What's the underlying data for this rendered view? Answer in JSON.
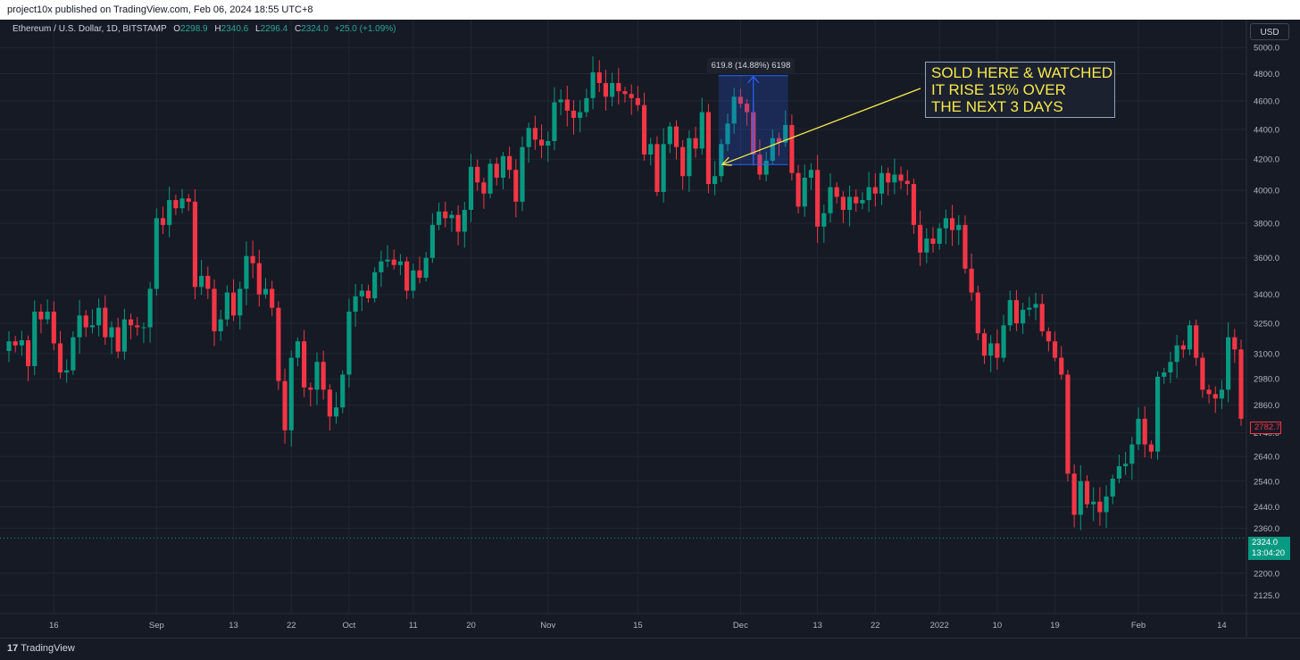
{
  "header": {
    "published": "project10x published on TradingView.com, Feb 06, 2024 18:55 UTC+8"
  },
  "legend": {
    "symbol": "Ethereum / U.S. Dollar, 1D, BITSTAMP",
    "o_label": "O",
    "o_value": "2298.9",
    "h_label": "H",
    "h_value": "2340.6",
    "l_label": "L",
    "l_value": "2296.4",
    "c_label": "C",
    "c_value": "2324.0",
    "change": "+25.0 (+1.09%)"
  },
  "currency_button": "USD",
  "annotation": {
    "lines": [
      "SOLD HERE & WATCHED",
      "IT RISE 15% OVER",
      "THE NEXT 3 DAYS"
    ]
  },
  "measure": {
    "label": "619.8 (14.88%) 6198",
    "from_price": 4165,
    "to_price": 4785
  },
  "price_tags": {
    "last_red": "2782.7",
    "current_price": "2324.0",
    "countdown": "13:04:20"
  },
  "footer": {
    "logo_text": "TradingView",
    "logo_mark": "17"
  },
  "colors": {
    "background": "#161a25",
    "up": "#089981",
    "down": "#f23645",
    "annotation_text": "#f7e94a",
    "measure_fill": "#2962ff"
  },
  "chart_data": {
    "type": "candlestick",
    "symbol": "ETH/USD",
    "interval": "1D",
    "y_axis": {
      "scale": "log",
      "ticks": [
        5000.0,
        4800.0,
        4600.0,
        4400.0,
        4200.0,
        4000.0,
        3800.0,
        3600.0,
        3400.0,
        3250.0,
        3100.0,
        2980.0,
        2860.0,
        2740.0,
        2640.0,
        2540.0,
        2440.0,
        2360.0,
        2200.0,
        2125.0
      ],
      "tick_labels": [
        "5000.0",
        "4800.0",
        "4600.0",
        "4400.0",
        "4200.0",
        "4000.0",
        "3800.0",
        "3600.0",
        "3400.0",
        "3250.0",
        "3100.0",
        "2980.0",
        "2860.0",
        "2740.0",
        "2640.0",
        "2540.0",
        "2440.0",
        "2360.0",
        "2200.0",
        "2125.0"
      ],
      "range": [
        2080,
        5150
      ]
    },
    "x_axis": {
      "ticks": [
        {
          "label": "16",
          "date": "2021-08-16"
        },
        {
          "label": "Sep",
          "date": "2021-09-01"
        },
        {
          "label": "13",
          "date": "2021-09-13"
        },
        {
          "label": "22",
          "date": "2021-09-22"
        },
        {
          "label": "Oct",
          "date": "2021-10-01"
        },
        {
          "label": "11",
          "date": "2021-10-11"
        },
        {
          "label": "20",
          "date": "2021-10-20"
        },
        {
          "label": "Nov",
          "date": "2021-11-01"
        },
        {
          "label": "15",
          "date": "2021-11-15"
        },
        {
          "label": "Dec",
          "date": "2021-12-01"
        },
        {
          "label": "13",
          "date": "2021-12-13"
        },
        {
          "label": "22",
          "date": "2021-12-22"
        },
        {
          "label": "2022",
          "date": "2022-01-01"
        },
        {
          "label": "10",
          "date": "2022-01-10"
        },
        {
          "label": "19",
          "date": "2022-01-19"
        },
        {
          "label": "Feb",
          "date": "2022-02-01"
        },
        {
          "label": "14",
          "date": "2022-02-14"
        }
      ],
      "range": [
        "2021-08-09",
        "2022-02-17"
      ]
    },
    "closes": [
      {
        "date": "2021-08-09",
        "close": 3160
      },
      {
        "date": "2021-08-10",
        "close": 3140
      },
      {
        "date": "2021-08-11",
        "close": 3165
      },
      {
        "date": "2021-08-12",
        "close": 3040
      },
      {
        "date": "2021-08-13",
        "close": 3310
      },
      {
        "date": "2021-08-14",
        "close": 3270
      },
      {
        "date": "2021-08-15",
        "close": 3310
      },
      {
        "date": "2021-08-16",
        "close": 3150
      },
      {
        "date": "2021-08-17",
        "close": 3010
      },
      {
        "date": "2021-08-18",
        "close": 3020
      },
      {
        "date": "2021-08-19",
        "close": 3180
      },
      {
        "date": "2021-08-20",
        "close": 3290
      },
      {
        "date": "2021-08-21",
        "close": 3230
      },
      {
        "date": "2021-08-22",
        "close": 3240
      },
      {
        "date": "2021-08-23",
        "close": 3330
      },
      {
        "date": "2021-08-24",
        "close": 3180
      },
      {
        "date": "2021-08-25",
        "close": 3230
      },
      {
        "date": "2021-08-26",
        "close": 3110
      },
      {
        "date": "2021-08-27",
        "close": 3270
      },
      {
        "date": "2021-08-28",
        "close": 3240
      },
      {
        "date": "2021-08-29",
        "close": 3230
      },
      {
        "date": "2021-08-30",
        "close": 3230
      },
      {
        "date": "2021-08-31",
        "close": 3430
      },
      {
        "date": "2021-09-01",
        "close": 3830
      },
      {
        "date": "2021-09-02",
        "close": 3790
      },
      {
        "date": "2021-09-03",
        "close": 3940
      },
      {
        "date": "2021-09-04",
        "close": 3890
      },
      {
        "date": "2021-09-05",
        "close": 3950
      },
      {
        "date": "2021-09-06",
        "close": 3930
      },
      {
        "date": "2021-09-07",
        "close": 3440
      },
      {
        "date": "2021-09-08",
        "close": 3500
      },
      {
        "date": "2021-09-09",
        "close": 3430
      },
      {
        "date": "2021-09-10",
        "close": 3210
      },
      {
        "date": "2021-09-11",
        "close": 3270
      },
      {
        "date": "2021-09-12",
        "close": 3410
      },
      {
        "date": "2021-09-13",
        "close": 3290
      },
      {
        "date": "2021-09-14",
        "close": 3430
      },
      {
        "date": "2021-09-15",
        "close": 3610
      },
      {
        "date": "2021-09-16",
        "close": 3570
      },
      {
        "date": "2021-09-17",
        "close": 3400
      },
      {
        "date": "2021-09-18",
        "close": 3430
      },
      {
        "date": "2021-09-19",
        "close": 3330
      },
      {
        "date": "2021-09-20",
        "close": 2970
      },
      {
        "date": "2021-09-21",
        "close": 2750
      },
      {
        "date": "2021-09-22",
        "close": 3080
      },
      {
        "date": "2021-09-23",
        "close": 3160
      },
      {
        "date": "2021-09-24",
        "close": 2940
      },
      {
        "date": "2021-09-25",
        "close": 2930
      },
      {
        "date": "2021-09-26",
        "close": 3060
      },
      {
        "date": "2021-09-27",
        "close": 2930
      },
      {
        "date": "2021-09-28",
        "close": 2810
      },
      {
        "date": "2021-09-29",
        "close": 2850
      },
      {
        "date": "2021-09-30",
        "close": 3000
      },
      {
        "date": "2021-10-01",
        "close": 3310
      },
      {
        "date": "2021-10-02",
        "close": 3390
      },
      {
        "date": "2021-10-03",
        "close": 3420
      },
      {
        "date": "2021-10-04",
        "close": 3380
      },
      {
        "date": "2021-10-05",
        "close": 3520
      },
      {
        "date": "2021-10-06",
        "close": 3580
      },
      {
        "date": "2021-10-07",
        "close": 3590
      },
      {
        "date": "2021-10-08",
        "close": 3560
      },
      {
        "date": "2021-10-09",
        "close": 3580
      },
      {
        "date": "2021-10-10",
        "close": 3420
      },
      {
        "date": "2021-10-11",
        "close": 3530
      },
      {
        "date": "2021-10-12",
        "close": 3490
      },
      {
        "date": "2021-10-13",
        "close": 3600
      },
      {
        "date": "2021-10-14",
        "close": 3790
      },
      {
        "date": "2021-10-15",
        "close": 3870
      },
      {
        "date": "2021-10-16",
        "close": 3830
      },
      {
        "date": "2021-10-17",
        "close": 3850
      },
      {
        "date": "2021-10-18",
        "close": 3750
      },
      {
        "date": "2021-10-19",
        "close": 3880
      },
      {
        "date": "2021-10-20",
        "close": 4150
      },
      {
        "date": "2021-10-21",
        "close": 4050
      },
      {
        "date": "2021-10-22",
        "close": 3980
      },
      {
        "date": "2021-10-23",
        "close": 4170
      },
      {
        "date": "2021-10-24",
        "close": 4080
      },
      {
        "date": "2021-10-25",
        "close": 4220
      },
      {
        "date": "2021-10-26",
        "close": 4130
      },
      {
        "date": "2021-10-27",
        "close": 3930
      },
      {
        "date": "2021-10-28",
        "close": 4280
      },
      {
        "date": "2021-10-29",
        "close": 4410
      },
      {
        "date": "2021-10-30",
        "close": 4330
      },
      {
        "date": "2021-10-31",
        "close": 4290
      },
      {
        "date": "2021-11-01",
        "close": 4320
      },
      {
        "date": "2021-11-02",
        "close": 4590
      },
      {
        "date": "2021-11-03",
        "close": 4610
      },
      {
        "date": "2021-11-04",
        "close": 4530
      },
      {
        "date": "2021-11-05",
        "close": 4480
      },
      {
        "date": "2021-11-06",
        "close": 4520
      },
      {
        "date": "2021-11-07",
        "close": 4620
      },
      {
        "date": "2021-11-08",
        "close": 4810
      },
      {
        "date": "2021-11-09",
        "close": 4730
      },
      {
        "date": "2021-11-10",
        "close": 4630
      },
      {
        "date": "2021-11-11",
        "close": 4730
      },
      {
        "date": "2021-11-12",
        "close": 4670
      },
      {
        "date": "2021-11-13",
        "close": 4650
      },
      {
        "date": "2021-11-14",
        "close": 4620
      },
      {
        "date": "2021-11-15",
        "close": 4570
      },
      {
        "date": "2021-11-16",
        "close": 4230
      },
      {
        "date": "2021-11-17",
        "close": 4300
      },
      {
        "date": "2021-11-18",
        "close": 3990
      },
      {
        "date": "2021-11-19",
        "close": 4300
      },
      {
        "date": "2021-11-20",
        "close": 4420
      },
      {
        "date": "2021-11-21",
        "close": 4280
      },
      {
        "date": "2021-11-22",
        "close": 4090
      },
      {
        "date": "2021-11-23",
        "close": 4340
      },
      {
        "date": "2021-11-24",
        "close": 4270
      },
      {
        "date": "2021-11-25",
        "close": 4520
      },
      {
        "date": "2021-11-26",
        "close": 4040
      },
      {
        "date": "2021-11-27",
        "close": 4090
      },
      {
        "date": "2021-11-28",
        "close": 4300
      },
      {
        "date": "2021-11-29",
        "close": 4440
      },
      {
        "date": "2021-11-30",
        "close": 4630
      },
      {
        "date": "2021-12-01",
        "close": 4580
      },
      {
        "date": "2021-12-02",
        "close": 4520
      },
      {
        "date": "2021-12-03",
        "close": 4230
      },
      {
        "date": "2021-12-04",
        "close": 4100
      },
      {
        "date": "2021-12-05",
        "close": 4190
      },
      {
        "date": "2021-12-06",
        "close": 4340
      },
      {
        "date": "2021-12-07",
        "close": 4310
      },
      {
        "date": "2021-12-08",
        "close": 4430
      },
      {
        "date": "2021-12-09",
        "close": 4110
      },
      {
        "date": "2021-12-10",
        "close": 3900
      },
      {
        "date": "2021-12-11",
        "close": 4080
      },
      {
        "date": "2021-12-12",
        "close": 4130
      },
      {
        "date": "2021-12-13",
        "close": 3780
      },
      {
        "date": "2021-12-14",
        "close": 3860
      },
      {
        "date": "2021-12-15",
        "close": 4020
      },
      {
        "date": "2021-12-16",
        "close": 3960
      },
      {
        "date": "2021-12-17",
        "close": 3880
      },
      {
        "date": "2021-12-18",
        "close": 3960
      },
      {
        "date": "2021-12-19",
        "close": 3920
      },
      {
        "date": "2021-12-20",
        "close": 3940
      },
      {
        "date": "2021-12-21",
        "close": 4020
      },
      {
        "date": "2021-12-22",
        "close": 3980
      },
      {
        "date": "2021-12-23",
        "close": 4110
      },
      {
        "date": "2021-12-24",
        "close": 4050
      },
      {
        "date": "2021-12-25",
        "close": 4100
      },
      {
        "date": "2021-12-26",
        "close": 4060
      },
      {
        "date": "2021-12-27",
        "close": 4040
      },
      {
        "date": "2021-12-28",
        "close": 3790
      },
      {
        "date": "2021-12-29",
        "close": 3630
      },
      {
        "date": "2021-12-30",
        "close": 3710
      },
      {
        "date": "2021-12-31",
        "close": 3680
      },
      {
        "date": "2022-01-01",
        "close": 3770
      },
      {
        "date": "2022-01-02",
        "close": 3830
      },
      {
        "date": "2022-01-03",
        "close": 3760
      },
      {
        "date": "2022-01-04",
        "close": 3790
      },
      {
        "date": "2022-01-05",
        "close": 3540
      },
      {
        "date": "2022-01-06",
        "close": 3410
      },
      {
        "date": "2022-01-07",
        "close": 3200
      },
      {
        "date": "2022-01-08",
        "close": 3090
      },
      {
        "date": "2022-01-09",
        "close": 3150
      },
      {
        "date": "2022-01-10",
        "close": 3080
      },
      {
        "date": "2022-01-11",
        "close": 3240
      },
      {
        "date": "2022-01-12",
        "close": 3370
      },
      {
        "date": "2022-01-13",
        "close": 3250
      },
      {
        "date": "2022-01-14",
        "close": 3320
      },
      {
        "date": "2022-01-15",
        "close": 3330
      },
      {
        "date": "2022-01-16",
        "close": 3350
      },
      {
        "date": "2022-01-17",
        "close": 3210
      },
      {
        "date": "2022-01-18",
        "close": 3160
      },
      {
        "date": "2022-01-19",
        "close": 3080
      },
      {
        "date": "2022-01-20",
        "close": 3000
      },
      {
        "date": "2022-01-21",
        "close": 2570
      },
      {
        "date": "2022-01-22",
        "close": 2410
      },
      {
        "date": "2022-01-23",
        "close": 2540
      },
      {
        "date": "2022-01-24",
        "close": 2450
      },
      {
        "date": "2022-01-25",
        "close": 2460
      },
      {
        "date": "2022-01-26",
        "close": 2420
      },
      {
        "date": "2022-01-27",
        "close": 2480
      },
      {
        "date": "2022-01-28",
        "close": 2550
      },
      {
        "date": "2022-01-29",
        "close": 2600
      },
      {
        "date": "2022-01-30",
        "close": 2610
      },
      {
        "date": "2022-01-31",
        "close": 2690
      },
      {
        "date": "2022-02-01",
        "close": 2800
      },
      {
        "date": "2022-02-02",
        "close": 2690
      },
      {
        "date": "2022-02-03",
        "close": 2660
      },
      {
        "date": "2022-02-04",
        "close": 2990
      },
      {
        "date": "2022-02-05",
        "close": 3010
      },
      {
        "date": "2022-02-06",
        "close": 3060
      },
      {
        "date": "2022-02-07",
        "close": 3140
      },
      {
        "date": "2022-02-08",
        "close": 3120
      },
      {
        "date": "2022-02-09",
        "close": 3240
      },
      {
        "date": "2022-02-10",
        "close": 3080
      },
      {
        "date": "2022-02-11",
        "close": 2930
      },
      {
        "date": "2022-02-12",
        "close": 2910
      },
      {
        "date": "2022-02-13",
        "close": 2890
      },
      {
        "date": "2022-02-14",
        "close": 2930
      },
      {
        "date": "2022-02-15",
        "close": 3180
      },
      {
        "date": "2022-02-16",
        "close": 3120
      },
      {
        "date": "2022-02-17",
        "close": 2800
      }
    ]
  }
}
